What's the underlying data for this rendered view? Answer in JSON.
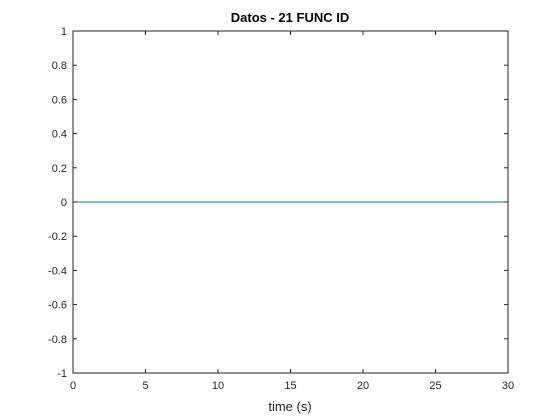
{
  "chart_data": {
    "type": "line",
    "title": "Datos - 21 FUNC ID",
    "xlabel": "time (s)",
    "ylabel": "",
    "xlim": [
      0,
      30
    ],
    "ylim": [
      -1,
      1
    ],
    "x_ticks": [
      0,
      5,
      10,
      15,
      20,
      25,
      30
    ],
    "x_tick_labels": [
      "0",
      "5",
      "10",
      "15",
      "20",
      "25",
      "30"
    ],
    "y_ticks": [
      1,
      0.8,
      0.6,
      0.4,
      0.2,
      0,
      -0.2,
      -0.4,
      -0.6,
      -0.8,
      -1
    ],
    "y_tick_labels": [
      "1",
      "0.8",
      "0.6",
      "0.4",
      "0.2",
      "0",
      "-0.2",
      "-0.4",
      "-0.6",
      "-0.8",
      "-1"
    ],
    "grid": false,
    "series": [
      {
        "color": "#0072bd",
        "x": [
          0,
          30
        ],
        "y": [
          0,
          0
        ]
      }
    ]
  }
}
